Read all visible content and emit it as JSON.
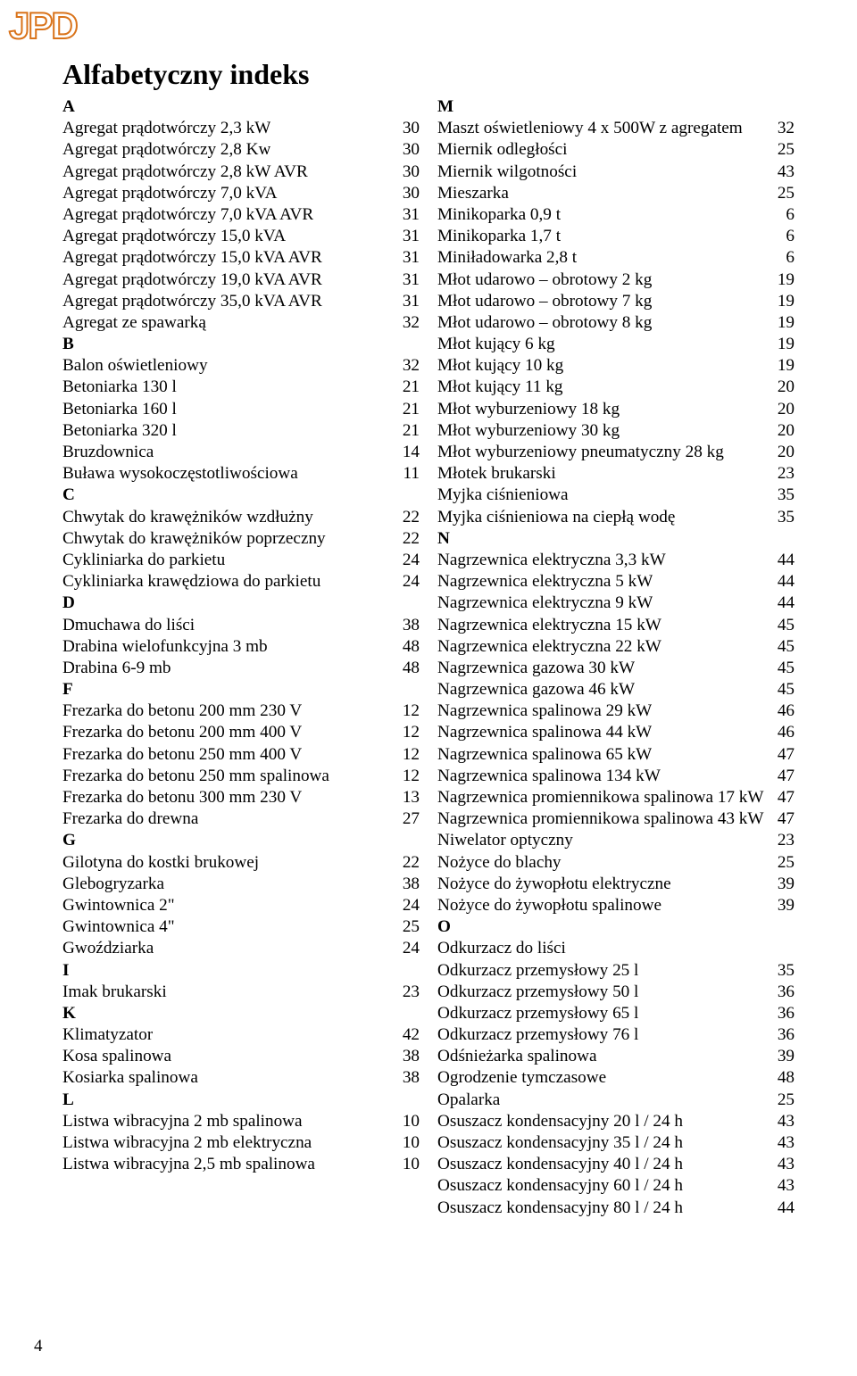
{
  "logo_text": "JPD",
  "title": "Alfabetyczny indeks",
  "page_number": "4",
  "left_column": [
    {
      "type": "letter",
      "text": "A"
    },
    {
      "type": "item",
      "label": "Agregat prądotwórczy 2,3 kW",
      "page": "30"
    },
    {
      "type": "item",
      "label": "Agregat prądotwórczy 2,8 Kw",
      "page": "30"
    },
    {
      "type": "item",
      "label": "Agregat prądotwórczy 2,8 kW AVR",
      "page": "30"
    },
    {
      "type": "item",
      "label": "Agregat prądotwórczy 7,0 kVA",
      "page": "30"
    },
    {
      "type": "item",
      "label": "Agregat prądotwórczy 7,0 kVA AVR",
      "page": "31"
    },
    {
      "type": "item",
      "label": "Agregat prądotwórczy 15,0 kVA",
      "page": "31"
    },
    {
      "type": "item",
      "label": "Agregat prądotwórczy 15,0 kVA AVR",
      "page": "31"
    },
    {
      "type": "item",
      "label": "Agregat prądotwórczy 19,0 kVA AVR",
      "page": "31"
    },
    {
      "type": "item",
      "label": "Agregat prądotwórczy 35,0 kVA AVR",
      "page": "31"
    },
    {
      "type": "item",
      "label": "Agregat ze spawarką",
      "page": "32"
    },
    {
      "type": "letter",
      "text": "B"
    },
    {
      "type": "item",
      "label": "Balon oświetleniowy",
      "page": "32"
    },
    {
      "type": "item",
      "label": "Betoniarka 130 l",
      "page": "21"
    },
    {
      "type": "item",
      "label": "Betoniarka 160 l",
      "page": "21"
    },
    {
      "type": "item",
      "label": "Betoniarka 320 l",
      "page": "21"
    },
    {
      "type": "item",
      "label": "Bruzdownica",
      "page": "14"
    },
    {
      "type": "item",
      "label": "Buława wysokoczęstotliwościowa",
      "page": "11"
    },
    {
      "type": "letter",
      "text": "C"
    },
    {
      "type": "item",
      "label": "Chwytak do krawężników wzdłużny",
      "page": "22"
    },
    {
      "type": "item",
      "label": "Chwytak do krawężników poprzeczny",
      "page": "22"
    },
    {
      "type": "item",
      "label": "Cykliniarka do parkietu",
      "page": "24"
    },
    {
      "type": "item",
      "label": "Cykliniarka krawędziowa do parkietu",
      "page": "24"
    },
    {
      "type": "letter",
      "text": "D"
    },
    {
      "type": "item",
      "label": "Dmuchawa do liści",
      "page": "38"
    },
    {
      "type": "item",
      "label": "Drabina wielofunkcyjna 3 mb",
      "page": "48"
    },
    {
      "type": "item",
      "label": "Drabina 6-9 mb",
      "page": "48"
    },
    {
      "type": "letter",
      "text": "F"
    },
    {
      "type": "item",
      "label": "Frezarka do betonu 200 mm 230 V",
      "page": "12"
    },
    {
      "type": "item",
      "label": "Frezarka do betonu 200 mm 400 V",
      "page": "12"
    },
    {
      "type": "item",
      "label": "Frezarka do betonu 250 mm 400 V",
      "page": "12"
    },
    {
      "type": "item",
      "label": "Frezarka do betonu 250 mm spalinowa",
      "page": "12"
    },
    {
      "type": "item",
      "label": "Frezarka do betonu 300 mm 230 V",
      "page": "13"
    },
    {
      "type": "item",
      "label": "Frezarka do drewna",
      "page": "27"
    },
    {
      "type": "letter",
      "text": "G"
    },
    {
      "type": "item",
      "label": "Gilotyna do kostki brukowej",
      "page": "22"
    },
    {
      "type": "item",
      "label": "Glebogryzarka",
      "page": "38"
    },
    {
      "type": "item",
      "label": "Gwintownica 2\"",
      "page": "24"
    },
    {
      "type": "item",
      "label": "Gwintownica 4\"",
      "page": "25"
    },
    {
      "type": "item",
      "label": "Gwoździarka",
      "page": "24"
    },
    {
      "type": "letter",
      "text": "I"
    },
    {
      "type": "item",
      "label": "Imak brukarski",
      "page": "23"
    },
    {
      "type": "letter",
      "text": "K"
    },
    {
      "type": "item",
      "label": "Klimatyzator",
      "page": "42"
    },
    {
      "type": "item",
      "label": "Kosa spalinowa",
      "page": "38"
    },
    {
      "type": "item",
      "label": "Kosiarka spalinowa",
      "page": "38"
    },
    {
      "type": "letter",
      "text": "L"
    },
    {
      "type": "item",
      "label": "Listwa wibracyjna 2 mb spalinowa",
      "page": "10"
    },
    {
      "type": "item",
      "label": "Listwa wibracyjna 2 mb elektryczna",
      "page": "10"
    },
    {
      "type": "item",
      "label": "Listwa wibracyjna 2,5 mb spalinowa",
      "page": "10"
    }
  ],
  "right_column": [
    {
      "type": "letter",
      "text": "M"
    },
    {
      "type": "item",
      "label": "Maszt oświetleniowy 4 x 500W z agregatem",
      "page": "32"
    },
    {
      "type": "item",
      "label": "Miernik odległości",
      "page": "25"
    },
    {
      "type": "item",
      "label": "Miernik wilgotności",
      "page": "43"
    },
    {
      "type": "item",
      "label": "Mieszarka",
      "page": "25"
    },
    {
      "type": "item",
      "label": "Minikoparka 0,9 t",
      "page": "6"
    },
    {
      "type": "item",
      "label": "Minikoparka 1,7 t",
      "page": "6"
    },
    {
      "type": "item",
      "label": "Miniładowarka 2,8 t",
      "page": "6"
    },
    {
      "type": "item",
      "label": "Młot udarowo – obrotowy  2 kg",
      "page": "19"
    },
    {
      "type": "item",
      "label": "Młot udarowo – obrotowy  7 kg",
      "page": "19"
    },
    {
      "type": "item",
      "label": "Młot udarowo – obrotowy  8 kg",
      "page": "19"
    },
    {
      "type": "item",
      "label": "Młot kujący 6 kg",
      "page": "19"
    },
    {
      "type": "item",
      "label": "Młot kujący 10 kg",
      "page": "19"
    },
    {
      "type": "item",
      "label": "Młot kujący 11 kg",
      "page": "20"
    },
    {
      "type": "item",
      "label": "Młot wyburzeniowy 18 kg",
      "page": "20"
    },
    {
      "type": "item",
      "label": "Młot wyburzeniowy 30 kg",
      "page": "20"
    },
    {
      "type": "item",
      "label": "Młot wyburzeniowy pneumatyczny 28 kg",
      "page": "20"
    },
    {
      "type": "item",
      "label": "Młotek brukarski",
      "page": "23"
    },
    {
      "type": "item",
      "label": "Myjka ciśnieniowa",
      "page": "35"
    },
    {
      "type": "item",
      "label": "Myjka ciśnieniowa na ciepłą wodę",
      "page": "35"
    },
    {
      "type": "letter",
      "text": "N"
    },
    {
      "type": "item",
      "label": "Nagrzewnica elektryczna 3,3 kW",
      "page": "44"
    },
    {
      "type": "item",
      "label": "Nagrzewnica elektryczna 5 kW",
      "page": "44"
    },
    {
      "type": "item",
      "label": "Nagrzewnica elektryczna 9 kW",
      "page": "44"
    },
    {
      "type": "item",
      "label": "Nagrzewnica elektryczna 15 kW",
      "page": "45"
    },
    {
      "type": "item",
      "label": "Nagrzewnica elektryczna 22 kW",
      "page": "45"
    },
    {
      "type": "item",
      "label": "Nagrzewnica gazowa 30 kW",
      "page": "45"
    },
    {
      "type": "item",
      "label": "Nagrzewnica gazowa 46 kW",
      "page": "45"
    },
    {
      "type": "item",
      "label": "Nagrzewnica spalinowa 29 kW",
      "page": "46"
    },
    {
      "type": "item",
      "label": "Nagrzewnica spalinowa 44 kW",
      "page": "46"
    },
    {
      "type": "item",
      "label": "Nagrzewnica spalinowa 65 kW",
      "page": "47"
    },
    {
      "type": "item",
      "label": "Nagrzewnica spalinowa 134 kW",
      "page": "47"
    },
    {
      "type": "item",
      "label": "Nagrzewnica promiennikowa spalinowa 17 kW",
      "page": "47"
    },
    {
      "type": "item",
      "label": "Nagrzewnica promiennikowa spalinowa 43 kW",
      "page": "47"
    },
    {
      "type": "item",
      "label": "Niwelator optyczny",
      "page": "23"
    },
    {
      "type": "item",
      "label": "Nożyce do blachy",
      "page": "25"
    },
    {
      "type": "item",
      "label": "Nożyce do żywopłotu elektryczne",
      "page": "39"
    },
    {
      "type": "item",
      "label": "Nożyce do żywopłotu spalinowe",
      "page": "39"
    },
    {
      "type": "letter",
      "text": "O"
    },
    {
      "type": "item",
      "label": "Odkurzacz do liści",
      "page": ""
    },
    {
      "type": "item",
      "label": "Odkurzacz przemysłowy 25 l",
      "page": "35"
    },
    {
      "type": "item",
      "label": "Odkurzacz przemysłowy 50 l",
      "page": "36"
    },
    {
      "type": "item",
      "label": "Odkurzacz przemysłowy 65 l",
      "page": "36"
    },
    {
      "type": "item",
      "label": "Odkurzacz przemysłowy 76 l",
      "page": "36"
    },
    {
      "type": "item",
      "label": "Odśnieżarka spalinowa",
      "page": "39"
    },
    {
      "type": "item",
      "label": "Ogrodzenie tymczasowe",
      "page": "48"
    },
    {
      "type": "item",
      "label": "Opalarka",
      "page": "25"
    },
    {
      "type": "item",
      "label": "Osuszacz kondensacyjny 20 l / 24 h",
      "page": "43"
    },
    {
      "type": "item",
      "label": "Osuszacz kondensacyjny 35 l / 24 h",
      "page": "43"
    },
    {
      "type": "item",
      "label": "Osuszacz kondensacyjny 40 l / 24 h",
      "page": "43"
    },
    {
      "type": "item",
      "label": "Osuszacz kondensacyjny 60 l / 24 h",
      "page": "43"
    },
    {
      "type": "item",
      "label": "Osuszacz kondensacyjny 80 l / 24 h",
      "page": "44"
    }
  ]
}
